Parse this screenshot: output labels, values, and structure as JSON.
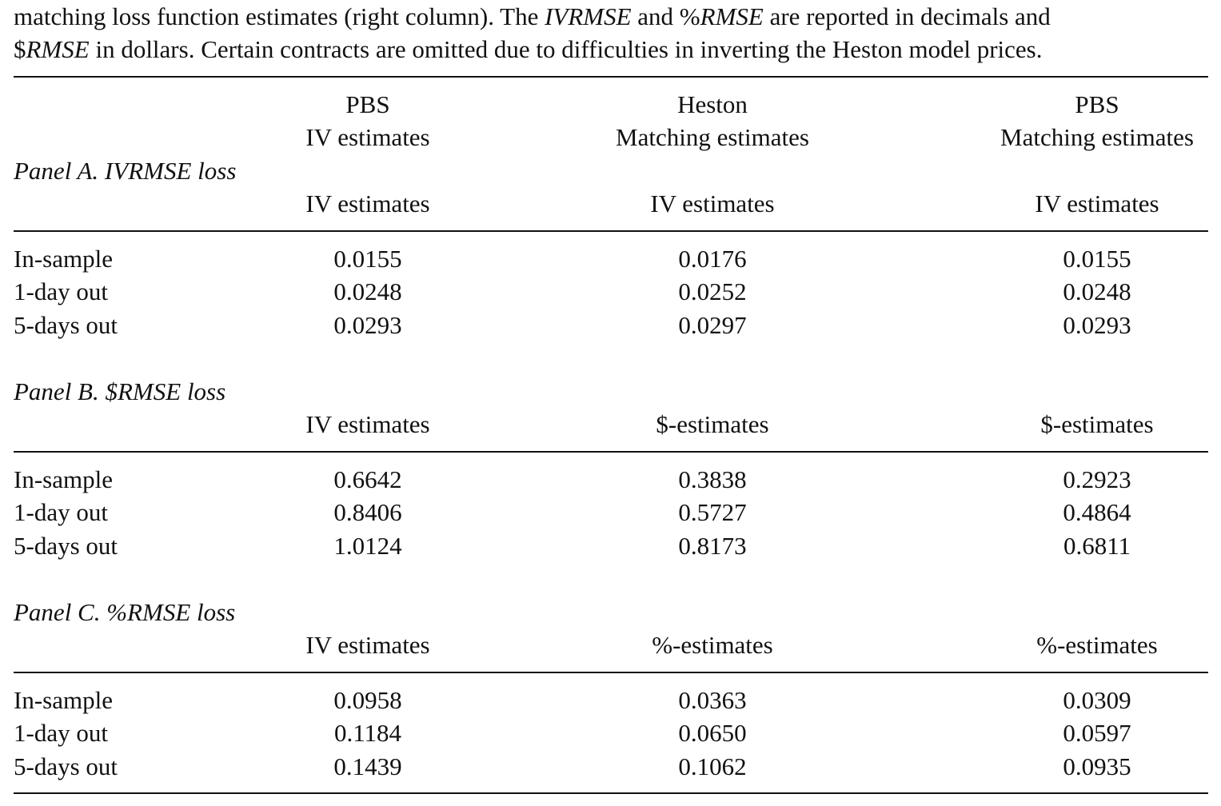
{
  "caption": {
    "line1_a": "matching loss function estimates (right column). The ",
    "line1_b": "IVRMSE",
    "line1_c": " and %",
    "line1_d": "RMSE",
    "line1_e": " are reported in decimals and",
    "line2_a": "$",
    "line2_b": "RMSE",
    "line2_c": " in dollars. Certain contracts are omitted due to difficulties in inverting the Heston model prices."
  },
  "header": {
    "col1_line1": "PBS",
    "col1_line2": "IV estimates",
    "col2_line1": "Heston",
    "col2_line2": "Matching estimates",
    "col3_line1": "PBS",
    "col3_line2": "Matching estimates"
  },
  "panels": [
    {
      "title": "Panel A. IVRMSE loss",
      "subheaders": [
        "IV estimates",
        "IV estimates",
        "IV estimates"
      ],
      "rows": [
        {
          "label": "In-sample",
          "values": [
            "0.0155",
            "0.0176",
            "0.0155"
          ]
        },
        {
          "label": "1-day out",
          "values": [
            "0.0248",
            "0.0252",
            "0.0248"
          ]
        },
        {
          "label": "5-days out",
          "values": [
            "0.0293",
            "0.0297",
            "0.0293"
          ]
        }
      ]
    },
    {
      "title": "Panel B. $RMSE loss",
      "subheaders": [
        "IV estimates",
        "$-estimates",
        "$-estimates"
      ],
      "rows": [
        {
          "label": "In-sample",
          "values": [
            "0.6642",
            "0.3838",
            "0.2923"
          ]
        },
        {
          "label": "1-day out",
          "values": [
            "0.8406",
            "0.5727",
            "0.4864"
          ]
        },
        {
          "label": "5-days out",
          "values": [
            "1.0124",
            "0.8173",
            "0.6811"
          ]
        }
      ]
    },
    {
      "title": "Panel C. %RMSE loss",
      "subheaders": [
        "IV estimates",
        "%-estimates",
        "%-estimates"
      ],
      "rows": [
        {
          "label": "In-sample",
          "values": [
            "0.0958",
            "0.0363",
            "0.0309"
          ]
        },
        {
          "label": "1-day out",
          "values": [
            "0.1184",
            "0.0650",
            "0.0597"
          ]
        },
        {
          "label": "5-days out",
          "values": [
            "0.1439",
            "0.1062",
            "0.0935"
          ]
        }
      ]
    }
  ]
}
